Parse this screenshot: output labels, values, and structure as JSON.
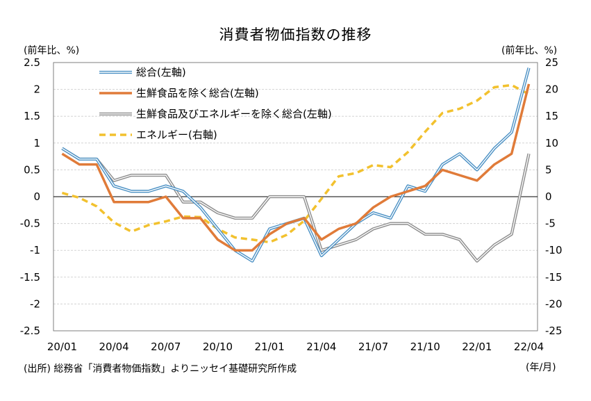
{
  "chart_data": {
    "type": "line",
    "title": "消費者物価指数の推移",
    "left_unit": "(前年比、%)",
    "right_unit": "(前年比、%)",
    "x_unit": "(年/月)",
    "source": "(出所) 総務省「消費者物価指数」よりニッセイ基礎研究所作成",
    "x": [
      "20/01",
      "20/02",
      "20/03",
      "20/04",
      "20/05",
      "20/06",
      "20/07",
      "20/08",
      "20/09",
      "20/10",
      "20/11",
      "20/12",
      "21/01",
      "21/02",
      "21/03",
      "21/04",
      "21/05",
      "21/06",
      "21/07",
      "21/08",
      "21/09",
      "21/10",
      "21/11",
      "21/12",
      "22/01",
      "22/02",
      "22/03",
      "22/04"
    ],
    "x_tick_labels": [
      "20/01",
      "20/04",
      "20/07",
      "20/10",
      "21/01",
      "21/04",
      "21/07",
      "21/10",
      "22/01",
      "22/04"
    ],
    "y_left_range": [
      -2.5,
      2.5
    ],
    "y_left_ticks": [
      "2.5",
      "2",
      "1.5",
      "1",
      "0.5",
      "0",
      "-0.5",
      "-1",
      "-1.5",
      "-2",
      "-2.5"
    ],
    "y_right_range": [
      -25,
      25
    ],
    "y_right_ticks": [
      "25",
      "20",
      "15",
      "10",
      "5",
      "0",
      "-5",
      "-10",
      "-15",
      "-20",
      "-25"
    ],
    "grid": true,
    "legend_position": "top-left",
    "series": [
      {
        "name": "総合(左軸)",
        "axis": "left",
        "color": "#4a90c4",
        "style": "double",
        "values": [
          0.9,
          0.7,
          0.7,
          0.2,
          0.1,
          0.1,
          0.2,
          0.1,
          -0.2,
          -0.6,
          -1.0,
          -1.2,
          -0.6,
          -0.5,
          -0.4,
          -1.1,
          -0.8,
          -0.5,
          -0.3,
          -0.4,
          0.2,
          0.1,
          0.6,
          0.8,
          0.5,
          0.9,
          1.2,
          2.4
        ]
      },
      {
        "name": "生鮮食品を除く総合(左軸)",
        "axis": "left",
        "color": "#e07b39",
        "style": "solid",
        "values": [
          0.8,
          0.6,
          0.6,
          -0.1,
          -0.1,
          -0.1,
          0.0,
          -0.4,
          -0.4,
          -0.8,
          -1.0,
          -1.0,
          -0.7,
          -0.5,
          -0.4,
          -0.8,
          -0.6,
          -0.5,
          -0.2,
          0.0,
          0.1,
          0.2,
          0.5,
          0.4,
          0.3,
          0.6,
          0.8,
          2.1
        ]
      },
      {
        "name": "生鮮食品及びエネルギーを除く総合(左軸)",
        "axis": "left",
        "color": "#8c8c8c",
        "style": "double",
        "values": [
          0.9,
          0.7,
          0.7,
          0.3,
          0.4,
          0.4,
          0.4,
          -0.1,
          -0.1,
          -0.3,
          -0.4,
          -0.4,
          0.0,
          0.0,
          0.0,
          -1.0,
          -0.9,
          -0.8,
          -0.6,
          -0.5,
          -0.5,
          -0.7,
          -0.7,
          -0.8,
          -1.2,
          -0.9,
          -0.7,
          0.8
        ]
      },
      {
        "name": "エネルギー(右軸)",
        "axis": "right",
        "color": "#f2c12e",
        "style": "dashed",
        "values": [
          0.7,
          -0.2,
          -1.8,
          -4.8,
          -6.5,
          -5.3,
          -4.6,
          -3.7,
          -3.8,
          -6.0,
          -7.6,
          -8.0,
          -8.5,
          -7.1,
          -4.5,
          -0.4,
          3.8,
          4.4,
          5.9,
          5.5,
          8.3,
          12.1,
          15.6,
          16.4,
          17.9,
          20.4,
          20.8,
          19.1
        ]
      }
    ]
  }
}
